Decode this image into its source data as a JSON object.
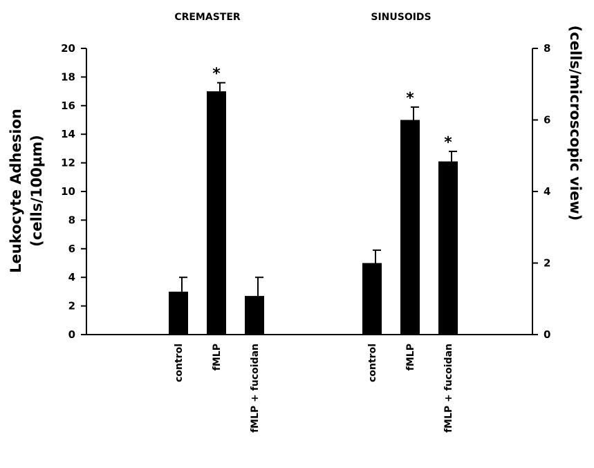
{
  "chart_data": {
    "type": "bar",
    "panels": [
      {
        "title": "CREMASTER",
        "axis": "left"
      },
      {
        "title": "SINUSOIDS",
        "axis": "right"
      }
    ],
    "left_axis": {
      "label_line1": "Leukocyte Adhesion",
      "label_line2": "(cells/100µm)",
      "ylim": [
        0,
        20
      ],
      "ticks": [
        "0",
        "2",
        "4",
        "6",
        "8",
        "10",
        "12",
        "14",
        "16",
        "18",
        "20"
      ]
    },
    "right_axis": {
      "label": "(cells/microscopic view)",
      "ylim": [
        0,
        8
      ],
      "ticks": [
        "0",
        "2",
        "4",
        "6",
        "8"
      ]
    },
    "bars": [
      {
        "group": "CREMASTER",
        "category": "control",
        "value": 3.0,
        "error": 1.0,
        "axis": "left",
        "significant": false
      },
      {
        "group": "CREMASTER",
        "category": "fMLP",
        "value": 17.0,
        "error": 0.6,
        "axis": "left",
        "significant": true
      },
      {
        "group": "CREMASTER",
        "category": "fMLP + fucoidan",
        "value": 2.7,
        "error": 1.3,
        "axis": "left",
        "significant": false
      },
      {
        "group": "SINUSOIDS",
        "category": "control",
        "value": 2.0,
        "error": 0.36,
        "axis": "right",
        "significant": false
      },
      {
        "group": "SINUSOIDS",
        "category": "fMLP",
        "value": 6.0,
        "error": 0.36,
        "axis": "right",
        "significant": true
      },
      {
        "group": "SINUSOIDS",
        "category": "fMLP + fucoidan",
        "value": 4.84,
        "error": 0.28,
        "axis": "right",
        "significant": true
      }
    ],
    "significance_marker": "*",
    "grid": false,
    "legend": "none"
  }
}
